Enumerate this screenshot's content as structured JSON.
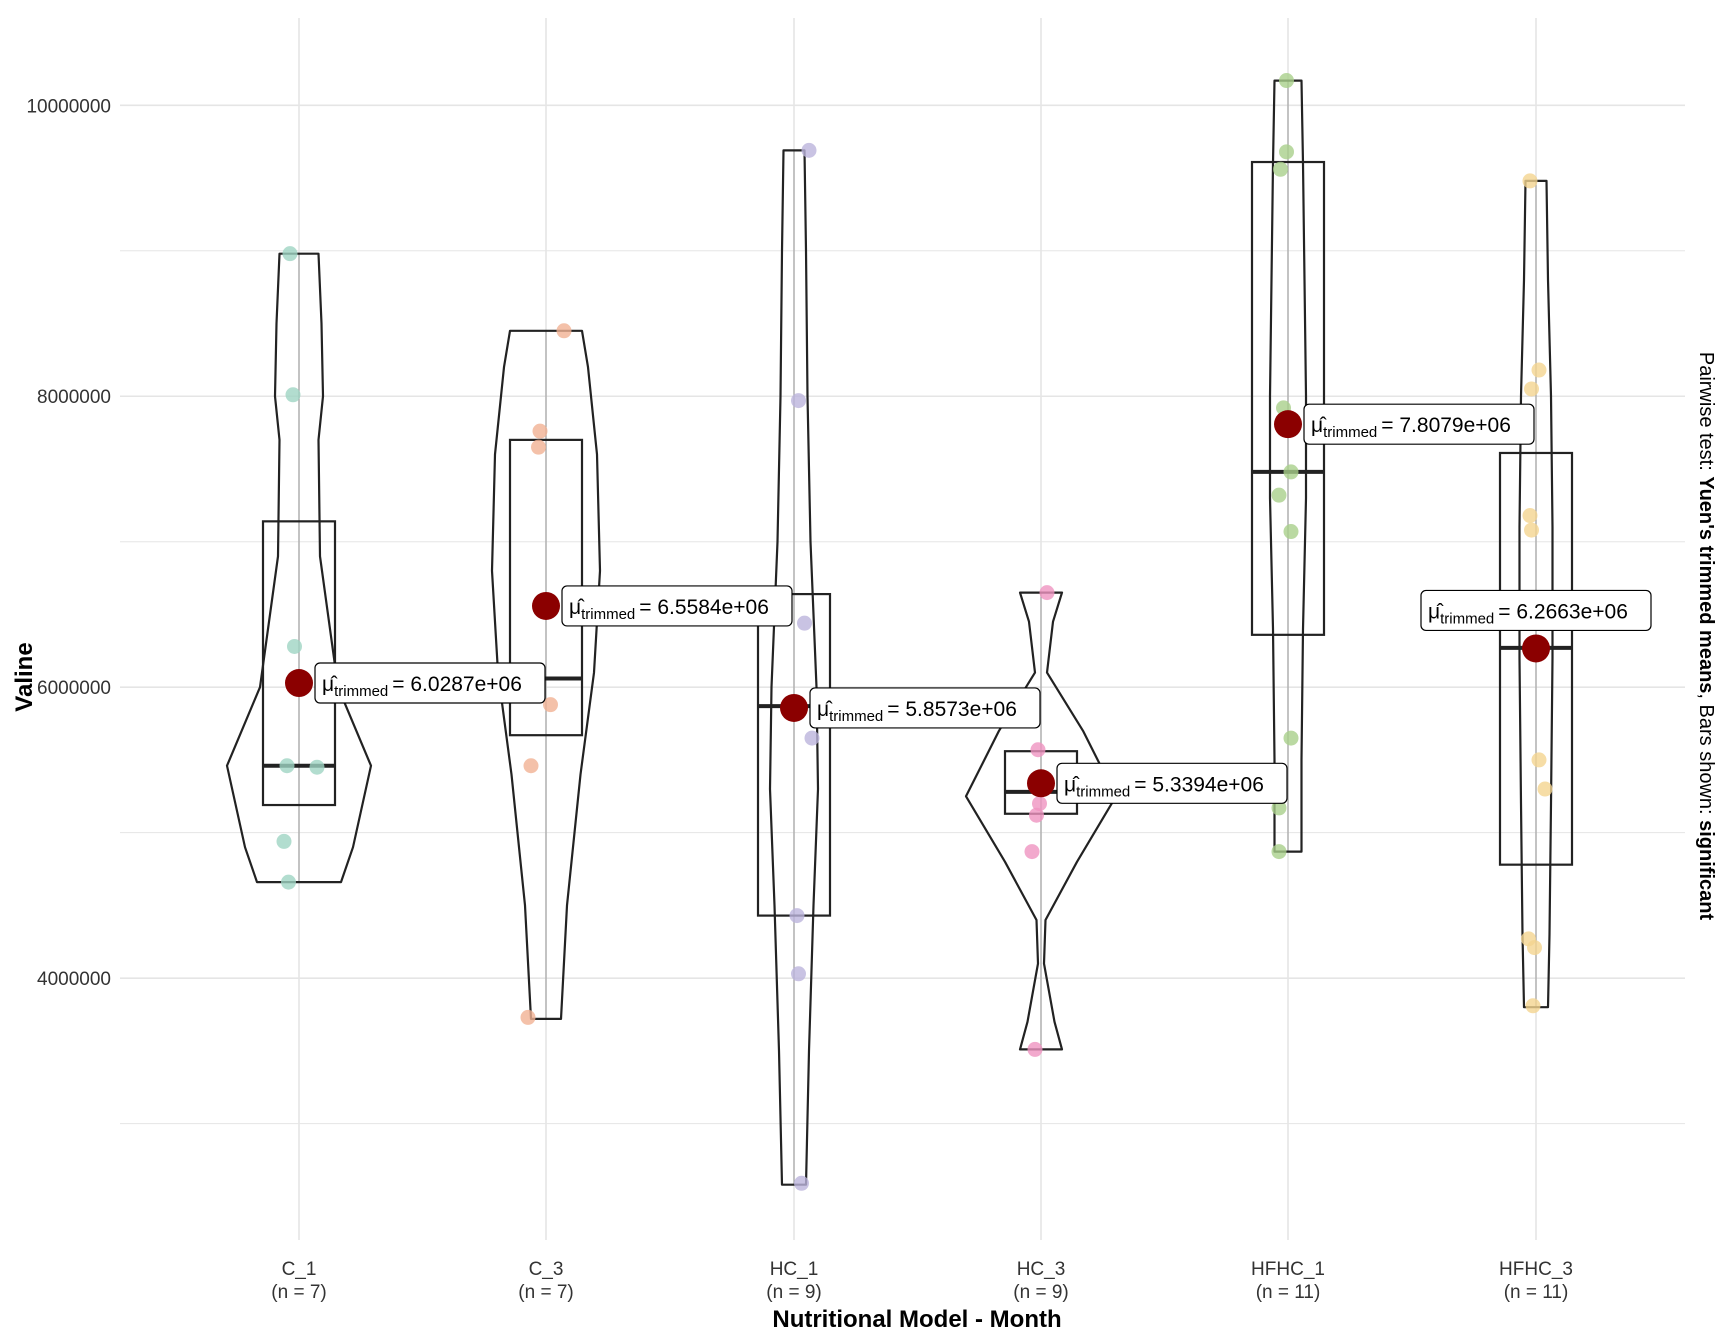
{
  "chart_data": {
    "type": "violin-box",
    "title": "",
    "xlabel": "Nutritional Model - Month",
    "ylabel": "Valine",
    "ylim": [
      2200000,
      10600000
    ],
    "yticks": [
      4000000,
      6000000,
      8000000,
      10000000
    ],
    "ytick_labels": [
      "4000000",
      "6000000",
      "8000000",
      "10000000"
    ],
    "grid": true,
    "side_note": {
      "prefix": "Pairwise test: ",
      "test": "Yuen's trimmed means",
      "middle": ", Bars shown: ",
      "bars": "significant"
    },
    "mean_symbol": "μ̂",
    "mean_subscript": "trimmed",
    "colors": {
      "mean_point": "#8B0000",
      "grid": "#e5e5e5",
      "outline": "#222222"
    },
    "groups": [
      {
        "name": "C_1",
        "n_label": "(n = 7)",
        "color": "#9fd5c3",
        "trimmed_mean": 6028700,
        "mean_label": "= 6.0287e+06",
        "box": {
          "q1": 5190000,
          "median": 5460000,
          "q3": 7140000
        },
        "violin_min": 4660000,
        "violin_max": 8980000,
        "violin_widths": [
          [
            4660000,
            0.28
          ],
          [
            4900000,
            0.36
          ],
          [
            5460000,
            0.48
          ],
          [
            6000000,
            0.26
          ],
          [
            6900000,
            0.14
          ],
          [
            7700000,
            0.13
          ],
          [
            8000000,
            0.16
          ],
          [
            8500000,
            0.15
          ],
          [
            8980000,
            0.13
          ]
        ],
        "points": [
          [
            -0.06,
            8980000
          ],
          [
            -0.04,
            8010000
          ],
          [
            -0.03,
            6280000
          ],
          [
            -0.08,
            5460000
          ],
          [
            0.12,
            5450000
          ],
          [
            -0.1,
            4940000
          ],
          [
            -0.07,
            4660000
          ]
        ]
      },
      {
        "name": "C_3",
        "n_label": "(n = 7)",
        "color": "#f1b193",
        "trimmed_mean": 6558400,
        "mean_label": "= 6.5584e+06",
        "box": {
          "q1": 5670000,
          "median": 6060000,
          "q3": 7700000
        },
        "violin_min": 3720000,
        "violin_max": 8450000,
        "violin_widths": [
          [
            3720000,
            0.1
          ],
          [
            4500000,
            0.14
          ],
          [
            5400000,
            0.23
          ],
          [
            6100000,
            0.32
          ],
          [
            6800000,
            0.36
          ],
          [
            7600000,
            0.34
          ],
          [
            8200000,
            0.28
          ],
          [
            8450000,
            0.24
          ]
        ],
        "points": [
          [
            0.12,
            8450000
          ],
          [
            -0.04,
            7760000
          ],
          [
            -0.05,
            7650000
          ],
          [
            0.03,
            5880000
          ],
          [
            -0.1,
            5460000
          ],
          [
            -0.12,
            3730000
          ]
        ]
      },
      {
        "name": "HC_1",
        "n_label": "(n = 9)",
        "color": "#bbb4dc",
        "trimmed_mean": 5857300,
        "mean_label": "= 5.8573e+06",
        "box": {
          "q1": 4430000,
          "median": 5870000,
          "q3": 6640000
        },
        "violin_min": 2580000,
        "violin_max": 9690000,
        "violin_widths": [
          [
            2580000,
            0.08
          ],
          [
            3500000,
            0.1
          ],
          [
            4500000,
            0.13
          ],
          [
            5300000,
            0.16
          ],
          [
            6000000,
            0.15
          ],
          [
            7000000,
            0.11
          ],
          [
            8000000,
            0.09
          ],
          [
            9000000,
            0.08
          ],
          [
            9690000,
            0.07
          ]
        ],
        "points": [
          [
            0.1,
            9690000
          ],
          [
            0.03,
            7970000
          ],
          [
            0.07,
            6440000
          ],
          [
            0.12,
            5650000
          ],
          [
            0.02,
            4430000
          ],
          [
            0.03,
            4030000
          ],
          [
            0.05,
            2590000
          ]
        ]
      },
      {
        "name": "HC_3",
        "n_label": "(n = 9)",
        "color": "#ef93c1",
        "trimmed_mean": 5339400,
        "mean_label": "= 5.3394e+06",
        "box": {
          "q1": 5130000,
          "median": 5280000,
          "q3": 5560000
        },
        "violin_min": 3510000,
        "violin_max": 6650000,
        "violin_widths": [
          [
            3510000,
            0.14
          ],
          [
            3700000,
            0.09
          ],
          [
            4100000,
            0.02
          ],
          [
            4400000,
            0.03
          ],
          [
            4800000,
            0.24
          ],
          [
            5250000,
            0.5
          ],
          [
            5700000,
            0.28
          ],
          [
            6100000,
            0.04
          ],
          [
            6450000,
            0.08
          ],
          [
            6650000,
            0.14
          ]
        ],
        "points": [
          [
            0.04,
            6650000
          ],
          [
            -0.02,
            5570000
          ],
          [
            -0.01,
            5200000
          ],
          [
            -0.03,
            5120000
          ],
          [
            -0.06,
            4870000
          ],
          [
            -0.04,
            3510000
          ]
        ]
      },
      {
        "name": "HFHC_1",
        "n_label": "(n = 11)",
        "color": "#a9cf8b",
        "trimmed_mean": 7807900,
        "mean_label": "= 7.8079e+06",
        "box": {
          "q1": 6360000,
          "median": 7480000,
          "q3": 9610000
        },
        "violin_min": 4870000,
        "violin_max": 10170000,
        "violin_widths": [
          [
            4870000,
            0.09
          ],
          [
            5500000,
            0.09
          ],
          [
            6400000,
            0.1
          ],
          [
            7300000,
            0.12
          ],
          [
            8000000,
            0.12
          ],
          [
            8800000,
            0.11
          ],
          [
            9600000,
            0.1
          ],
          [
            10170000,
            0.09
          ]
        ],
        "points": [
          [
            -0.01,
            10170000
          ],
          [
            -0.01,
            9680000
          ],
          [
            -0.05,
            9560000
          ],
          [
            -0.03,
            7920000
          ],
          [
            0.02,
            7480000
          ],
          [
            -0.06,
            7320000
          ],
          [
            0.02,
            7070000
          ],
          [
            0.02,
            5650000
          ],
          [
            -0.06,
            5170000
          ],
          [
            -0.06,
            4870000
          ]
        ]
      },
      {
        "name": "HFHC_3",
        "n_label": "(n = 11)",
        "color": "#f4d490",
        "trimmed_mean": 6266300,
        "mean_label": "= 6.2663e+06",
        "box": {
          "q1": 4780000,
          "median": 6270000,
          "q3": 7610000
        },
        "violin_min": 3800000,
        "violin_max": 9480000,
        "violin_widths": [
          [
            3800000,
            0.08
          ],
          [
            4300000,
            0.09
          ],
          [
            5200000,
            0.1
          ],
          [
            6200000,
            0.11
          ],
          [
            7100000,
            0.11
          ],
          [
            8000000,
            0.1
          ],
          [
            8800000,
            0.08
          ],
          [
            9480000,
            0.07
          ]
        ],
        "points": [
          [
            -0.04,
            9480000
          ],
          [
            -0.03,
            8050000
          ],
          [
            0.02,
            8180000
          ],
          [
            -0.04,
            7180000
          ],
          [
            -0.03,
            7080000
          ],
          [
            0.02,
            5500000
          ],
          [
            0.06,
            5300000
          ],
          [
            -0.05,
            4270000
          ],
          [
            -0.01,
            4210000
          ],
          [
            -0.02,
            3810000
          ]
        ]
      }
    ]
  }
}
